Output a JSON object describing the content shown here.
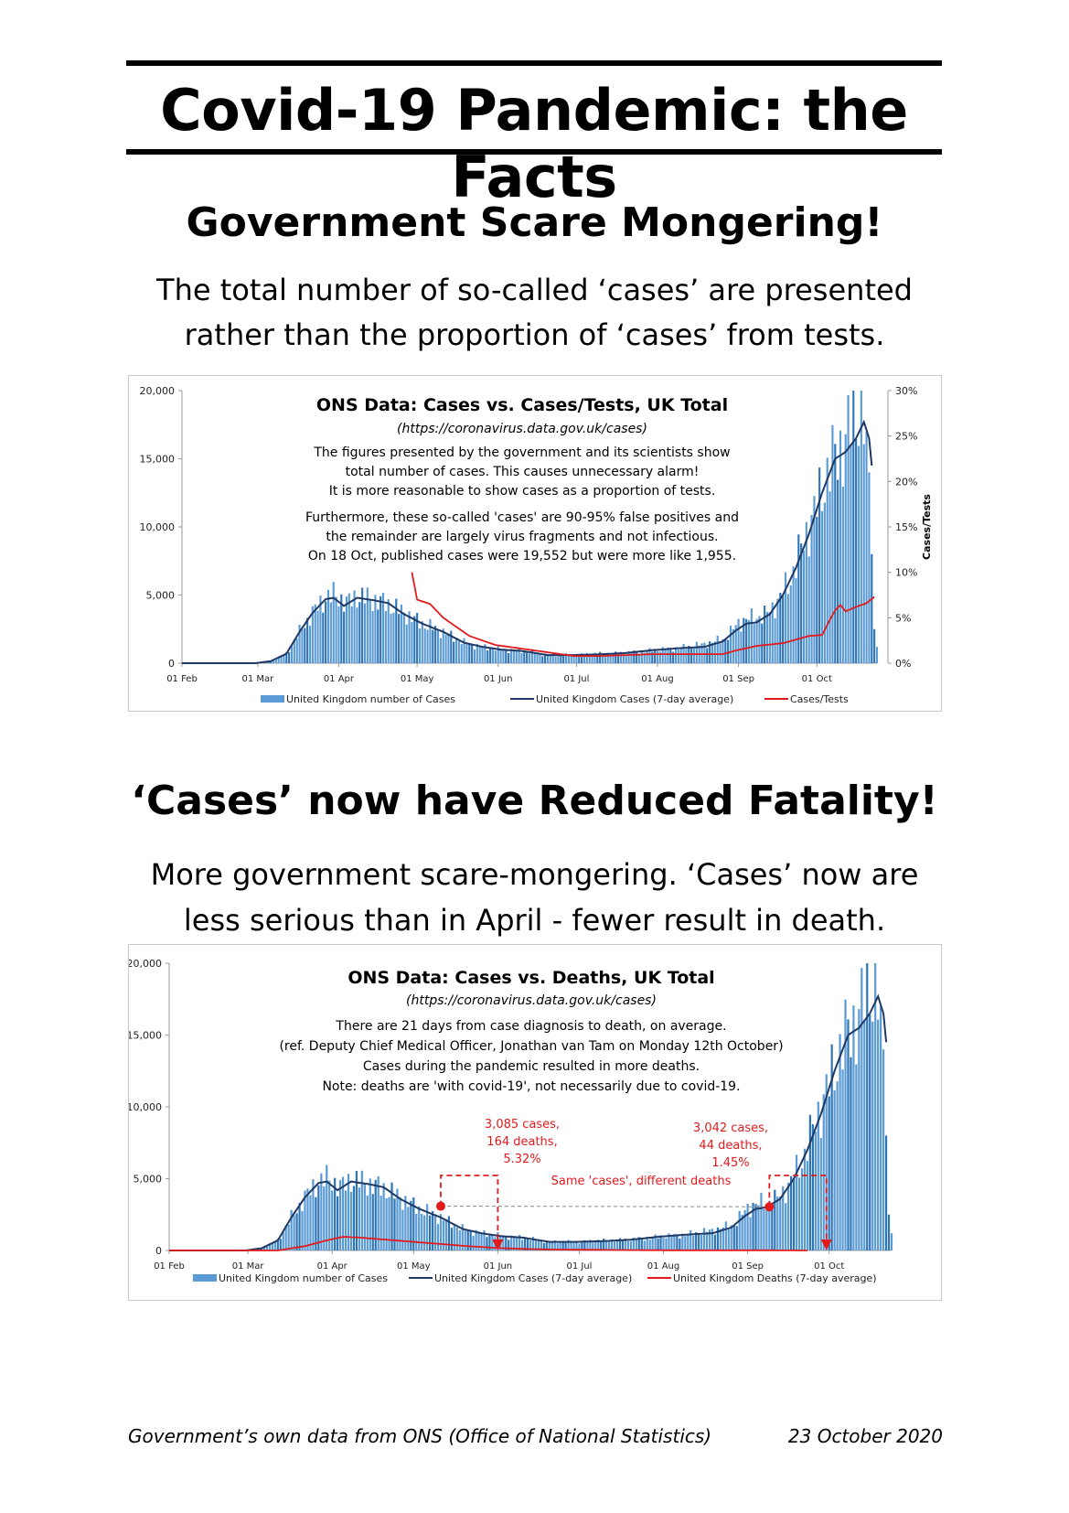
{
  "title": "Covid-19 Pandemic: the Facts",
  "section1": {
    "heading": "Government Scare Mongering!",
    "sub_line1": "The total number of so-called ‘cases’ are presented",
    "sub_line2": "rather than the proportion of ‘cases’ from tests."
  },
  "section2": {
    "heading": "‘Cases’ now have Reduced Fatality!",
    "sub_line1": "More government scare-mongering. ‘Cases’ now are",
    "sub_line2": "less serious than in April - fewer result in death."
  },
  "footer": {
    "source": "Government’s own data from ONS (Office of National Statistics)",
    "date": "23 October 2020"
  },
  "colors": {
    "bars": "#5b9bd5",
    "bars_dark": "#2e75b6",
    "avg_line": "#1f3864",
    "red": "#e31a1c"
  },
  "chart_data": [
    {
      "type": "bar",
      "title": "ONS Data: Cases vs. Cases/Tests, UK Total",
      "subtitle": "(https://coronavirus.data.gov.uk/cases)",
      "annotations": [
        "The figures presented by the government and its scientists show",
        "total number of cases. This causes unnecessary alarm!",
        "It is more reasonable to show cases as a proportion of tests.",
        "Furthermore, these so-called 'cases' are 90-95% false positives and",
        "the remainder are largely virus fragments and not infectious.",
        "On 18 Oct, published cases were 19,552 but were more like 1,955."
      ],
      "x_tick_labels": [
        "01 Feb",
        "01 Mar",
        "01 Apr",
        "01 May",
        "01 Jun",
        "01 Jul",
        "01 Aug",
        "01 Sep",
        "01 Oct"
      ],
      "y_tick_labels": [
        "0",
        "5,000",
        "10,000",
        "15,000",
        "20,000"
      ],
      "y2_tick_labels": [
        "0%",
        "5%",
        "10%",
        "15%",
        "20%",
        "25%",
        "30%"
      ],
      "ylim": [
        0,
        20000
      ],
      "y2lim": [
        0,
        30
      ],
      "y2label": "Cases/Tests",
      "x_range_days": [
        0,
        266
      ],
      "daily_cases_anchors": [
        [
          0,
          0
        ],
        [
          28,
          0
        ],
        [
          34,
          150
        ],
        [
          40,
          700
        ],
        [
          45,
          2300
        ],
        [
          50,
          3700
        ],
        [
          55,
          4800
        ],
        [
          59,
          5000
        ],
        [
          63,
          4400
        ],
        [
          67,
          4900
        ],
        [
          72,
          4700
        ],
        [
          78,
          4400
        ],
        [
          84,
          3800
        ],
        [
          92,
          2900
        ],
        [
          100,
          2300
        ],
        [
          108,
          1500
        ],
        [
          115,
          1200
        ],
        [
          122,
          1000
        ],
        [
          130,
          900
        ],
        [
          140,
          600
        ],
        [
          150,
          600
        ],
        [
          160,
          700
        ],
        [
          170,
          750
        ],
        [
          180,
          950
        ],
        [
          190,
          1100
        ],
        [
          200,
          1400
        ],
        [
          208,
          1800
        ],
        [
          213,
          3000
        ],
        [
          218,
          3300
        ],
        [
          223,
          3500
        ],
        [
          228,
          4500
        ],
        [
          233,
          6200
        ],
        [
          238,
          9000
        ],
        [
          243,
          11500
        ],
        [
          248,
          14500
        ],
        [
          253,
          16000
        ],
        [
          257,
          18000
        ],
        [
          260,
          19000
        ],
        [
          262,
          17000
        ],
        [
          263,
          14000
        ],
        [
          264,
          8000
        ],
        [
          265,
          2500
        ],
        [
          266,
          1200
        ]
      ],
      "avg_cases_anchors": [
        [
          0,
          0
        ],
        [
          28,
          0
        ],
        [
          34,
          150
        ],
        [
          40,
          700
        ],
        [
          45,
          2300
        ],
        [
          50,
          3700
        ],
        [
          55,
          4700
        ],
        [
          58,
          4800
        ],
        [
          62,
          4200
        ],
        [
          67,
          4800
        ],
        [
          74,
          4600
        ],
        [
          79,
          4400
        ],
        [
          85,
          3600
        ],
        [
          92,
          2900
        ],
        [
          100,
          2300
        ],
        [
          108,
          1500
        ],
        [
          115,
          1200
        ],
        [
          122,
          1000
        ],
        [
          130,
          900
        ],
        [
          140,
          600
        ],
        [
          150,
          600
        ],
        [
          160,
          650
        ],
        [
          170,
          750
        ],
        [
          180,
          950
        ],
        [
          190,
          1100
        ],
        [
          200,
          1200
        ],
        [
          207,
          1600
        ],
        [
          212,
          2400
        ],
        [
          216,
          2900
        ],
        [
          220,
          3000
        ],
        [
          225,
          3600
        ],
        [
          230,
          5000
        ],
        [
          235,
          7000
        ],
        [
          240,
          9500
        ],
        [
          245,
          12500
        ],
        [
          250,
          15000
        ],
        [
          254,
          15500
        ],
        [
          258,
          16500
        ],
        [
          261,
          17700
        ],
        [
          263,
          16500
        ],
        [
          264,
          14500
        ]
      ],
      "cases_tests_pct_anchors": [
        [
          88,
          10
        ],
        [
          90,
          7
        ],
        [
          95,
          6.5
        ],
        [
          100,
          5
        ],
        [
          110,
          3
        ],
        [
          120,
          2
        ],
        [
          130,
          1.6
        ],
        [
          140,
          1.2
        ],
        [
          150,
          0.8
        ],
        [
          160,
          0.8
        ],
        [
          170,
          0.9
        ],
        [
          180,
          1
        ],
        [
          190,
          1
        ],
        [
          200,
          1
        ],
        [
          207,
          1
        ],
        [
          212,
          1.4
        ],
        [
          220,
          1.9
        ],
        [
          230,
          2.2
        ],
        [
          240,
          3
        ],
        [
          245,
          3.1
        ],
        [
          248,
          4.8
        ],
        [
          250,
          5.8
        ],
        [
          252,
          6.4
        ],
        [
          254,
          5.7
        ],
        [
          258,
          6.2
        ],
        [
          262,
          6.6
        ],
        [
          265,
          7.3
        ]
      ],
      "legend": [
        "United Kingdom number of Cases",
        "United Kingdom Cases (7-day average)",
        "Cases/Tests"
      ],
      "legend_position": "bottom"
    },
    {
      "type": "bar",
      "title": "ONS Data: Cases vs. Deaths, UK Total",
      "subtitle": "(https://coronavirus.data.gov.uk/cases)",
      "annotations": [
        "There are 21 days from case diagnosis to death, on average.",
        "(ref. Deputy Chief Medical Officer, Jonathan van Tam on Monday 12th October)",
        "Cases during the pandemic resulted in more deaths.",
        "Note: deaths are 'with covid-19', not necessarily due to covid-19."
      ],
      "callout1": [
        "3,085 cases,",
        "164 deaths,",
        "5.32%"
      ],
      "callout2": [
        "3,042 cases,",
        "44 deaths,",
        "1.45%"
      ],
      "callout_middle": "Same 'cases', different deaths",
      "callout1_day": 100,
      "callout1_value": 3085,
      "callout2_day": 221,
      "callout2_value": 3042,
      "x_tick_labels": [
        "01 Feb",
        "01 Mar",
        "01 Apr",
        "01 May",
        "01 Jun",
        "01 Jul",
        "01 Aug",
        "01 Sep",
        "01 Oct"
      ],
      "y_tick_labels": [
        "0",
        "5,000",
        "10,000",
        "15,000",
        "20,000"
      ],
      "ylim": [
        0,
        20000
      ],
      "x_range_days": [
        0,
        266
      ],
      "deaths_anchors": [
        [
          0,
          0
        ],
        [
          40,
          0
        ],
        [
          50,
          300
        ],
        [
          58,
          700
        ],
        [
          64,
          950
        ],
        [
          70,
          900
        ],
        [
          80,
          750
        ],
        [
          90,
          600
        ],
        [
          100,
          450
        ],
        [
          110,
          300
        ],
        [
          120,
          180
        ],
        [
          130,
          110
        ],
        [
          140,
          70
        ],
        [
          150,
          50
        ],
        [
          160,
          40
        ],
        [
          175,
          20
        ],
        [
          190,
          10
        ],
        [
          205,
          10
        ],
        [
          215,
          15
        ],
        [
          235,
          0
        ]
      ],
      "legend": [
        "United Kingdom number of Cases",
        "United Kingdom Cases (7-day average)",
        "United Kingdom Deaths (7-day average)"
      ],
      "legend_position": "bottom"
    }
  ]
}
